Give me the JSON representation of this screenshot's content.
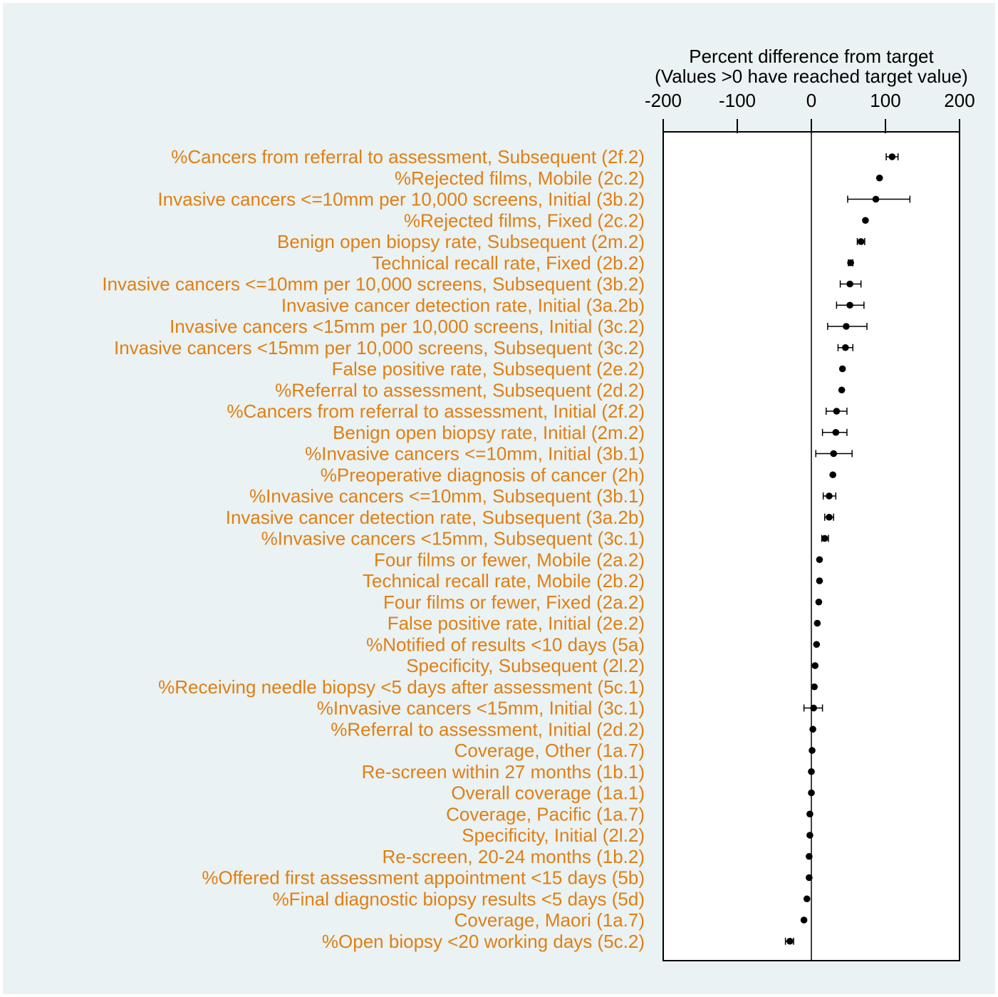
{
  "colors": {
    "background": "#eaf2f3",
    "plot_background": "#ffffff",
    "label_color": "#e07f13",
    "marker_color": "#000000",
    "frame_color": "#000000"
  },
  "chart_data": {
    "type": "scatter",
    "subtype": "forest-plot",
    "title_lines": [
      "Percent difference from target",
      "(Values >0 have reached target value)"
    ],
    "xaxis_position": "top",
    "xlim": [
      -200,
      200
    ],
    "xticks": [
      -200,
      -100,
      0,
      100,
      200
    ],
    "xtick_labels": [
      "-200",
      "-100",
      "0",
      "100",
      "200"
    ],
    "reference_line_x": 0,
    "grid": false,
    "rows": [
      {
        "label": "%Cancers from referral to assessment, Subsequent (2f.2)",
        "value": 109,
        "low": 101,
        "high": 117
      },
      {
        "label": "%Rejected films, Mobile (2c.2)",
        "value": 92,
        "low": 92,
        "high": 92
      },
      {
        "label": "Invasive cancers <=10mm per 10,000 screens, Initial (3b.2)",
        "value": 87,
        "low": 49,
        "high": 133
      },
      {
        "label": "%Rejected films, Fixed (2c.2)",
        "value": 73,
        "low": 73,
        "high": 73
      },
      {
        "label": "Benign open biopsy rate, Subsequent (2m.2)",
        "value": 67,
        "low": 62,
        "high": 72
      },
      {
        "label": "Technical recall rate, Fixed (2b.2)",
        "value": 53,
        "low": 50,
        "high": 56
      },
      {
        "label": "Invasive cancers <=10mm per 10,000 screens, Subsequent (3b.2)",
        "value": 52,
        "low": 39,
        "high": 67
      },
      {
        "label": "Invasive cancer detection rate, Initial (3a.2b)",
        "value": 52,
        "low": 34,
        "high": 71
      },
      {
        "label": "Invasive cancers <15mm per 10,000 screens, Initial (3c.2)",
        "value": 47,
        "low": 22,
        "high": 75
      },
      {
        "label": "Invasive cancers <15mm per 10,000 screens, Subsequent (3c.2)",
        "value": 46,
        "low": 36,
        "high": 56
      },
      {
        "label": "False positive rate, Subsequent (2e.2)",
        "value": 42,
        "low": 42,
        "high": 42
      },
      {
        "label": "%Referral to assessment, Subsequent (2d.2)",
        "value": 41,
        "low": 41,
        "high": 41
      },
      {
        "label": "%Cancers from referral to assessment, Initial (2f.2)",
        "value": 34,
        "low": 20,
        "high": 48
      },
      {
        "label": "Benign open biopsy rate, Initial (2m.2)",
        "value": 33,
        "low": 15,
        "high": 48
      },
      {
        "label": "%Invasive cancers <=10mm, Initial (3b.1)",
        "value": 30,
        "low": 6,
        "high": 55
      },
      {
        "label": "%Preoperative diagnosis of cancer (2h)",
        "value": 29,
        "low": 29,
        "high": 29
      },
      {
        "label": "%Invasive cancers <=10mm, Subsequent (3b.1)",
        "value": 24,
        "low": 16,
        "high": 33
      },
      {
        "label": "Invasive cancer detection rate, Subsequent (3a.2b)",
        "value": 24,
        "low": 18,
        "high": 30
      },
      {
        "label": "%Invasive cancers <15mm, Subsequent (3c.1)",
        "value": 18,
        "low": 14,
        "high": 23
      },
      {
        "label": "Four films or fewer, Mobile (2a.2)",
        "value": 11,
        "low": 11,
        "high": 11
      },
      {
        "label": "Technical recall rate, Mobile (2b.2)",
        "value": 11,
        "low": 11,
        "high": 11
      },
      {
        "label": "Four films or fewer, Fixed (2a.2)",
        "value": 10,
        "low": 10,
        "high": 10
      },
      {
        "label": "False positive rate, Initial (2e.2)",
        "value": 8,
        "low": 8,
        "high": 8
      },
      {
        "label": "%Notified of results <10 days (5a)",
        "value": 7,
        "low": 7,
        "high": 7
      },
      {
        "label": "Specificity, Subsequent (2l.2)",
        "value": 5,
        "low": 5,
        "high": 5
      },
      {
        "label": "%Receiving needle biopsy <5 days after assessment (5c.1)",
        "value": 4,
        "low": 4,
        "high": 4
      },
      {
        "label": "%Invasive cancers <15mm, Initial (3c.1)",
        "value": 3,
        "low": -10,
        "high": 15
      },
      {
        "label": "%Referral to assessment, Initial (2d.2)",
        "value": 2,
        "low": 2,
        "high": 2
      },
      {
        "label": "Coverage, Other (1a.7)",
        "value": 1,
        "low": 1,
        "high": 1
      },
      {
        "label": "Re-screen within 27 months (1b.1)",
        "value": 0,
        "low": 0,
        "high": 0
      },
      {
        "label": "Overall coverage (1a.1)",
        "value": 0,
        "low": 0,
        "high": 0
      },
      {
        "label": "Coverage, Pacific (1a.7)",
        "value": -2,
        "low": -2,
        "high": -2
      },
      {
        "label": "Specificity, Initial (2l.2)",
        "value": -2,
        "low": -2,
        "high": -2
      },
      {
        "label": "Re-screen, 20-24 months (1b.2)",
        "value": -3,
        "low": -3,
        "high": -3
      },
      {
        "label": "%Offered first assessment appointment <15 days (5b)",
        "value": -3,
        "low": -3,
        "high": -3
      },
      {
        "label": "%Final diagnostic biopsy results <5 days (5d)",
        "value": -6,
        "low": -6,
        "high": -6
      },
      {
        "label": "Coverage, Maori (1a.7)",
        "value": -10,
        "low": -10,
        "high": -10
      },
      {
        "label": "%Open biopsy <20 working days (5c.2)",
        "value": -29,
        "low": -35,
        "high": -24
      }
    ]
  }
}
